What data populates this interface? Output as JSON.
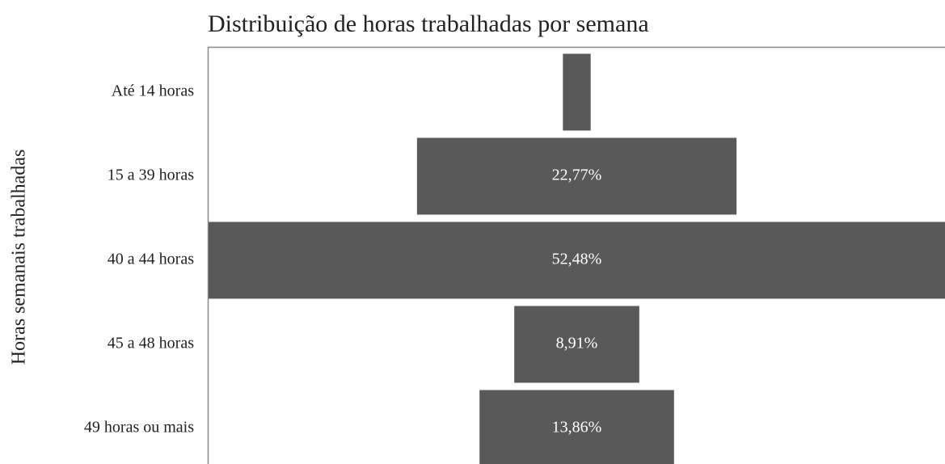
{
  "chart_data": {
    "type": "funnel",
    "title": "Distribuição de horas trabalhadas por semana",
    "y_label": "Horas semanais trabalhadas",
    "categories": [
      "Até 14 horas",
      "15 a 39 horas",
      "40 a 44 horas",
      "45 a 48 horas",
      "49 horas ou mais"
    ],
    "values": [
      1.98,
      22.77,
      52.48,
      8.91,
      13.86
    ],
    "value_labels": [
      null,
      "22,77%",
      "52,48%",
      "8,91%",
      "13,86%"
    ],
    "color": "#595959"
  }
}
